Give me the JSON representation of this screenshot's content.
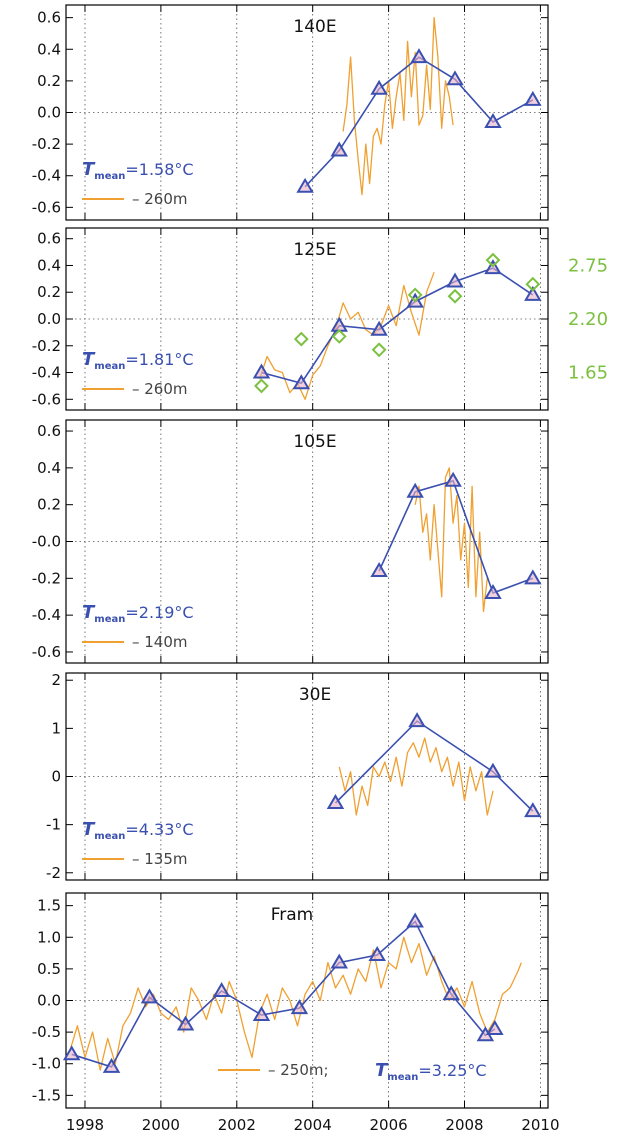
{
  "colors": {
    "orange": "#F0A030",
    "blue": "#3A50B0",
    "green": "#7CC040",
    "triangle_fill": "#E8B0C8",
    "axis": "#000000"
  },
  "x_axis": {
    "xlim": [
      1997.5,
      2010.2
    ],
    "ticks": [
      1998,
      2000,
      2002,
      2004,
      2006,
      2008,
      2010
    ],
    "tick_labels": [
      "1998",
      "2000",
      "2002",
      "2004",
      "2006",
      "2008",
      "2010"
    ]
  },
  "chart_data": [
    {
      "type": "line",
      "title": "140E",
      "ylim": [
        -0.68,
        0.68
      ],
      "yticks": [
        -0.6,
        -0.4,
        -0.2,
        0.0,
        0.2,
        0.4,
        0.6
      ],
      "ytick_labels": [
        "-0.6",
        "-0.4",
        "-0.2",
        "0.0",
        "0.2",
        "0.4",
        "0.6"
      ],
      "grid": true,
      "legend": {
        "placement": "bottom-left",
        "t_label": "T",
        "t_sub": "mean",
        "t_value": "=1.58°C",
        "line_label": "– 260m"
      },
      "series": [
        {
          "style": "orange-line",
          "x": [
            2004.8,
            2004.9,
            2005.0,
            2005.1,
            2005.2,
            2005.3,
            2005.4,
            2005.5,
            2005.6,
            2005.7,
            2005.8,
            2005.9,
            2006.0,
            2006.1,
            2006.2,
            2006.3,
            2006.4,
            2006.5,
            2006.6,
            2006.7,
            2006.8,
            2006.9,
            2007.0,
            2007.1,
            2007.2,
            2007.3,
            2007.4,
            2007.5,
            2007.6,
            2007.7
          ],
          "y": [
            -0.12,
            0.05,
            0.35,
            -0.05,
            -0.3,
            -0.52,
            -0.2,
            -0.45,
            -0.15,
            -0.1,
            -0.2,
            0.05,
            0.2,
            -0.1,
            0.1,
            0.25,
            -0.05,
            0.45,
            0.1,
            0.38,
            -0.08,
            -0.02,
            0.3,
            0.02,
            0.6,
            0.35,
            -0.1,
            0.2,
            0.1,
            -0.08
          ]
        },
        {
          "style": "blue-triangles",
          "x": [
            2003.8,
            2004.7,
            2005.75,
            2006.8,
            2007.75,
            2008.75,
            2009.8
          ],
          "y": [
            -0.47,
            -0.24,
            0.15,
            0.35,
            0.21,
            -0.06,
            0.08
          ]
        }
      ]
    },
    {
      "type": "line",
      "title": "125E",
      "ylim": [
        -0.68,
        0.68
      ],
      "yticks": [
        -0.6,
        -0.4,
        -0.2,
        0.0,
        0.2,
        0.4,
        0.6
      ],
      "ytick_labels": [
        "-0.6",
        "-0.4",
        "-0.2",
        "0.0",
        "0.2",
        "0.4",
        "0.6"
      ],
      "grid": true,
      "legend": {
        "placement": "bottom-left",
        "t_label": "T",
        "t_sub": "mean",
        "t_value": "=1.81°C",
        "line_label": "– 260m"
      },
      "right_axis_labels": [
        {
          "label": "2.75",
          "y": 0.4
        },
        {
          "label": "2.20",
          "y": 0.0
        },
        {
          "label": "1.65",
          "y": -0.4
        }
      ],
      "series": [
        {
          "style": "orange-line",
          "x": [
            2002.6,
            2002.8,
            2003.0,
            2003.2,
            2003.4,
            2003.6,
            2003.8,
            2004.0,
            2004.2,
            2004.4,
            2004.6,
            2004.8,
            2005.0,
            2005.2,
            2005.4,
            2005.6,
            2005.8,
            2006.0,
            2006.2,
            2006.4,
            2006.6,
            2006.8,
            2007.0,
            2007.2
          ],
          "y": [
            -0.45,
            -0.28,
            -0.38,
            -0.4,
            -0.55,
            -0.48,
            -0.6,
            -0.42,
            -0.35,
            -0.2,
            -0.08,
            0.12,
            0.0,
            0.05,
            -0.08,
            -0.12,
            -0.05,
            0.1,
            -0.05,
            0.25,
            0.05,
            -0.12,
            0.2,
            0.35
          ]
        },
        {
          "style": "blue-triangles",
          "x": [
            2002.65,
            2003.7,
            2004.7,
            2005.75,
            2006.7,
            2007.75,
            2008.75,
            2009.8
          ],
          "y": [
            -0.4,
            -0.48,
            -0.05,
            -0.08,
            0.13,
            0.28,
            0.38,
            0.18
          ]
        },
        {
          "style": "green-diamonds",
          "x": [
            2002.65,
            2003.7,
            2004.7,
            2005.75,
            2006.7,
            2007.75,
            2008.75,
            2009.8
          ],
          "y": [
            -0.5,
            -0.15,
            -0.13,
            -0.23,
            0.18,
            0.17,
            0.44,
            0.26
          ]
        }
      ]
    },
    {
      "type": "line",
      "title": "105E",
      "ylim": [
        -0.66,
        0.66
      ],
      "yticks": [
        -0.6,
        -0.4,
        -0.2,
        0.0,
        0.2,
        0.4,
        0.6
      ],
      "ytick_labels": [
        "-0.6",
        "-0.4",
        "-0.2",
        "-0.0",
        "0.2",
        "0.4",
        "0.6"
      ],
      "grid": true,
      "legend": {
        "placement": "bottom-left",
        "t_label": "T",
        "t_sub": "mean",
        "t_value": "=2.19°C",
        "line_label": "– 140m"
      },
      "series": [
        {
          "style": "orange-line",
          "x": [
            2006.7,
            2006.8,
            2006.9,
            2007.0,
            2007.1,
            2007.2,
            2007.3,
            2007.4,
            2007.5,
            2007.6,
            2007.7,
            2007.8,
            2007.9,
            2008.0,
            2008.1,
            2008.2,
            2008.3,
            2008.4,
            2008.5,
            2008.6
          ],
          "y": [
            0.2,
            0.3,
            0.05,
            0.15,
            -0.1,
            0.2,
            -0.05,
            -0.3,
            0.35,
            0.4,
            0.1,
            0.25,
            -0.1,
            0.1,
            -0.25,
            0.3,
            -0.3,
            0.05,
            -0.38,
            -0.2
          ]
        },
        {
          "style": "blue-triangles",
          "x": [
            2005.75,
            2006.7,
            2007.7,
            2008.75,
            2009.8
          ],
          "y": [
            -0.16,
            0.27,
            0.33,
            -0.28,
            -0.2
          ]
        }
      ]
    },
    {
      "type": "line",
      "title": "30E",
      "ylim": [
        -2.15,
        2.15
      ],
      "yticks": [
        -2,
        -1,
        0,
        1,
        2
      ],
      "ytick_labels": [
        "-2",
        "-1",
        "0",
        "1",
        "2"
      ],
      "grid": true,
      "legend": {
        "placement": "bottom-left",
        "t_label": "T",
        "t_sub": "mean",
        "t_value": "=4.33°C",
        "line_label": "– 135m"
      },
      "series": [
        {
          "style": "orange-line",
          "x": [
            2004.7,
            2004.85,
            2005.0,
            2005.15,
            2005.3,
            2005.45,
            2005.6,
            2005.75,
            2005.9,
            2006.05,
            2006.2,
            2006.35,
            2006.5,
            2006.65,
            2006.8,
            2006.95,
            2007.1,
            2007.25,
            2007.4,
            2007.55,
            2007.7,
            2007.85,
            2008.0,
            2008.15,
            2008.3,
            2008.45,
            2008.6,
            2008.75
          ],
          "y": [
            0.2,
            -0.3,
            0.1,
            -0.8,
            -0.2,
            -0.6,
            0.2,
            0.0,
            0.3,
            -0.1,
            0.4,
            -0.2,
            0.5,
            0.7,
            0.4,
            0.8,
            0.3,
            0.6,
            0.1,
            0.4,
            -0.2,
            0.3,
            -0.5,
            0.2,
            -0.3,
            0.1,
            -0.8,
            -0.3
          ]
        },
        {
          "style": "blue-triangles",
          "x": [
            2004.6,
            2006.75,
            2008.75,
            2009.8
          ],
          "y": [
            -0.55,
            1.15,
            0.1,
            -0.72
          ]
        }
      ]
    },
    {
      "type": "line",
      "title": "Fram",
      "ylim": [
        -1.7,
        1.7
      ],
      "yticks": [
        -1.5,
        -1.0,
        -0.5,
        0.0,
        0.5,
        1.0,
        1.5
      ],
      "ytick_labels": [
        "-1.5",
        "-1.0",
        "-0.5",
        "0.0",
        "0.5",
        "1.0",
        "1.5"
      ],
      "grid": true,
      "legend": {
        "placement": "bottom-right",
        "t_label": "T",
        "t_sub": "mean",
        "t_value": "=3.25°C",
        "line_label": "– 250m;"
      },
      "series": [
        {
          "style": "orange-line",
          "x": [
            1997.6,
            1997.8,
            1998.0,
            1998.2,
            1998.4,
            1998.6,
            1998.8,
            1999.0,
            1999.2,
            1999.4,
            1999.6,
            1999.8,
            2000.0,
            2000.2,
            2000.4,
            2000.6,
            2000.8,
            2001.0,
            2001.2,
            2001.4,
            2001.6,
            2001.8,
            2002.0,
            2002.2,
            2002.4,
            2002.6,
            2002.8,
            2003.0,
            2003.2,
            2003.4,
            2003.6,
            2003.8,
            2004.0,
            2004.2,
            2004.4,
            2004.6,
            2004.8,
            2005.0,
            2005.2,
            2005.4,
            2005.6,
            2005.8,
            2006.0,
            2006.2,
            2006.4,
            2006.6,
            2006.8,
            2007.0,
            2007.2,
            2007.4,
            2007.6,
            2007.8,
            2008.0,
            2008.2,
            2008.4,
            2008.6,
            2008.8,
            2009.0,
            2009.2,
            2009.4,
            2009.5
          ],
          "y": [
            -0.8,
            -0.4,
            -0.9,
            -0.5,
            -1.1,
            -0.6,
            -1.0,
            -0.4,
            -0.2,
            0.2,
            -0.1,
            0.1,
            -0.2,
            -0.3,
            -0.1,
            -0.5,
            0.2,
            0.0,
            -0.3,
            0.1,
            -0.2,
            0.3,
            0.0,
            -0.5,
            -0.9,
            -0.2,
            0.1,
            -0.3,
            0.2,
            0.0,
            -0.4,
            0.1,
            0.3,
            0.0,
            0.6,
            0.2,
            0.4,
            0.1,
            0.5,
            0.3,
            0.8,
            0.2,
            0.6,
            0.5,
            1.0,
            0.6,
            0.9,
            0.4,
            0.7,
            0.3,
            0.0,
            0.2,
            -0.1,
            0.3,
            -0.2,
            -0.5,
            -0.3,
            0.1,
            0.2,
            0.45,
            0.6
          ]
        },
        {
          "style": "blue-triangles",
          "x": [
            1997.65,
            1998.7,
            1999.7,
            2000.65,
            2001.6,
            2002.65,
            2003.65,
            2004.7,
            2005.7,
            2006.7,
            2007.65,
            2008.55,
            2008.8
          ],
          "y": [
            -0.85,
            -1.05,
            0.05,
            -0.38,
            0.15,
            -0.23,
            -0.12,
            0.6,
            0.72,
            1.25,
            0.1,
            -0.55,
            -0.45
          ]
        }
      ]
    }
  ]
}
